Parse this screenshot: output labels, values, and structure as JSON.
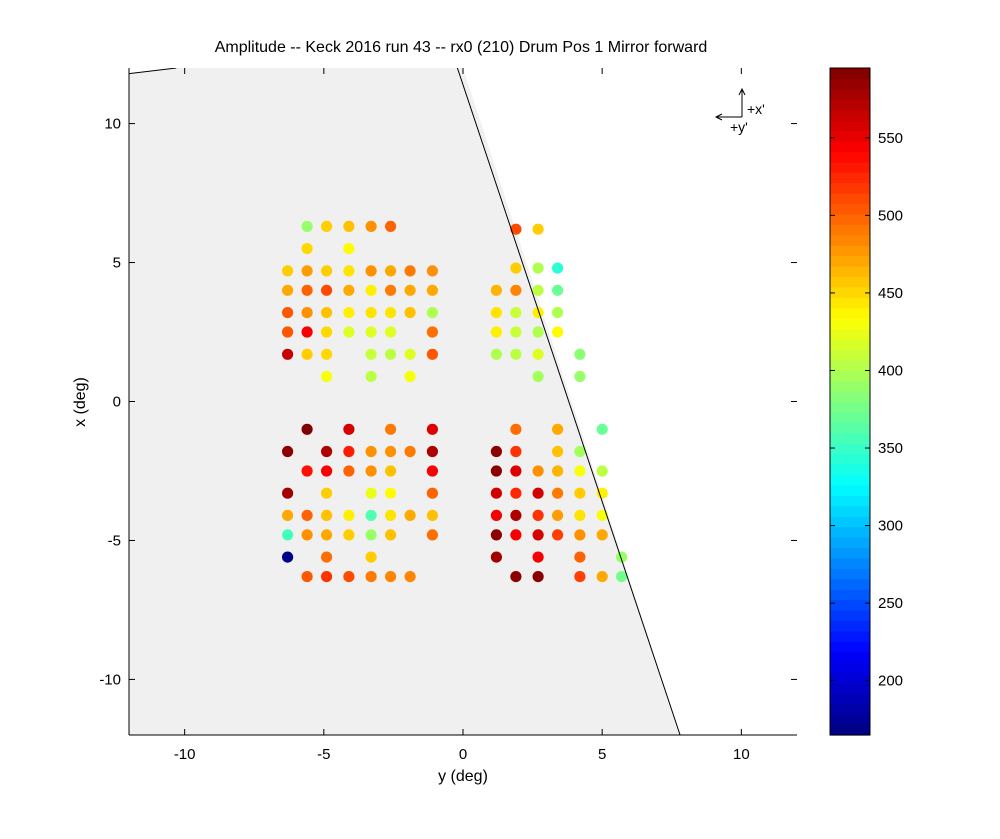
{
  "chart_data": {
    "type": "scatter",
    "title": "Amplitude -- Keck 2016 run 43 -- rx0 (210) Drum Pos 1 Mirror forward",
    "xlabel": "y (deg)",
    "ylabel": "x (deg)",
    "xlim": [
      -12,
      12
    ],
    "ylim": [
      -12,
      12
    ],
    "xticks": [
      -10,
      -5,
      0,
      5,
      10
    ],
    "yticks": [
      -10,
      -5,
      0,
      5,
      10
    ],
    "xtick_labels": [
      "-10",
      "-5",
      "0",
      "5",
      "10"
    ],
    "ytick_labels": [
      "-10",
      "-5",
      "0",
      "5",
      "10"
    ],
    "grid": false,
    "shaded_region": {
      "color": "#f0f0f0",
      "polygon": [
        [
          -12,
          11.8
        ],
        [
          -10.3,
          12
        ],
        [
          0,
          12
        ],
        [
          7.8,
          -12
        ],
        [
          -12,
          -12
        ]
      ]
    },
    "boundary_line": [
      [
        [
          -12,
          11.8
        ],
        [
          -10.3,
          12
        ]
      ],
      [
        [
          -0.2,
          12
        ],
        [
          7.8,
          -12
        ],
        [
          12,
          -12
        ]
      ]
    ],
    "colorbar": {
      "colormap": "jet",
      "min": 165,
      "max": 595,
      "ticks": [
        200,
        250,
        300,
        350,
        400,
        450,
        500,
        550
      ],
      "tick_labels": [
        "200",
        "250",
        "300",
        "350",
        "400",
        "450",
        "500",
        "550"
      ]
    },
    "orientation_label": {
      "x_axis": "+x'",
      "y_axis": "+y'"
    },
    "points": [
      {
        "y": -5.6,
        "x": 6.3,
        "amp": 390
      },
      {
        "y": -4.9,
        "x": 6.3,
        "amp": 455
      },
      {
        "y": -4.1,
        "x": 6.3,
        "amp": 460
      },
      {
        "y": -3.3,
        "x": 6.3,
        "amp": 480
      },
      {
        "y": -2.6,
        "x": 6.3,
        "amp": 500
      },
      {
        "y": -5.6,
        "x": 5.5,
        "amp": 450
      },
      {
        "y": -4.1,
        "x": 5.5,
        "amp": 435
      },
      {
        "y": -6.3,
        "x": 4.7,
        "amp": 455
      },
      {
        "y": -5.6,
        "x": 4.7,
        "amp": 475
      },
      {
        "y": -4.9,
        "x": 4.7,
        "amp": 455
      },
      {
        "y": -4.1,
        "x": 4.7,
        "amp": 445
      },
      {
        "y": -3.3,
        "x": 4.7,
        "amp": 480
      },
      {
        "y": -2.6,
        "x": 4.7,
        "amp": 470
      },
      {
        "y": -1.9,
        "x": 4.7,
        "amp": 490
      },
      {
        "y": -1.1,
        "x": 4.7,
        "amp": 480
      },
      {
        "y": -6.3,
        "x": 4.0,
        "amp": 470
      },
      {
        "y": -5.6,
        "x": 4.0,
        "amp": 500
      },
      {
        "y": -4.9,
        "x": 4.0,
        "amp": 510
      },
      {
        "y": -4.1,
        "x": 4.0,
        "amp": 470
      },
      {
        "y": -3.3,
        "x": 4.0,
        "amp": 440
      },
      {
        "y": -2.6,
        "x": 4.0,
        "amp": 490
      },
      {
        "y": -1.9,
        "x": 4.0,
        "amp": 470
      },
      {
        "y": -1.1,
        "x": 4.0,
        "amp": 470
      },
      {
        "y": -6.3,
        "x": 3.2,
        "amp": 505
      },
      {
        "y": -5.6,
        "x": 3.2,
        "amp": 480
      },
      {
        "y": -4.9,
        "x": 3.2,
        "amp": 460
      },
      {
        "y": -4.1,
        "x": 3.2,
        "amp": 440
      },
      {
        "y": -3.3,
        "x": 3.2,
        "amp": 445
      },
      {
        "y": -2.6,
        "x": 3.2,
        "amp": 445
      },
      {
        "y": -1.9,
        "x": 3.2,
        "amp": 460
      },
      {
        "y": -1.1,
        "x": 3.2,
        "amp": 400
      },
      {
        "y": -6.3,
        "x": 2.5,
        "amp": 505
      },
      {
        "y": -5.6,
        "x": 2.5,
        "amp": 545
      },
      {
        "y": -4.9,
        "x": 2.5,
        "amp": 450
      },
      {
        "y": -4.1,
        "x": 2.5,
        "amp": 420
      },
      {
        "y": -3.3,
        "x": 2.5,
        "amp": 420
      },
      {
        "y": -2.6,
        "x": 2.5,
        "amp": 420
      },
      {
        "y": -1.1,
        "x": 2.5,
        "amp": 495
      },
      {
        "y": -6.3,
        "x": 1.7,
        "amp": 565
      },
      {
        "y": -5.6,
        "x": 1.7,
        "amp": 455
      },
      {
        "y": -4.9,
        "x": 1.7,
        "amp": 450
      },
      {
        "y": -3.3,
        "x": 1.7,
        "amp": 410
      },
      {
        "y": -2.6,
        "x": 1.7,
        "amp": 405
      },
      {
        "y": -1.9,
        "x": 1.7,
        "amp": 420
      },
      {
        "y": -1.1,
        "x": 1.7,
        "amp": 505
      },
      {
        "y": -4.9,
        "x": 0.9,
        "amp": 430
      },
      {
        "y": -3.3,
        "x": 0.9,
        "amp": 405
      },
      {
        "y": -1.9,
        "x": 0.9,
        "amp": 430
      },
      {
        "y": 1.9,
        "x": 6.2,
        "amp": 510
      },
      {
        "y": 2.7,
        "x": 6.2,
        "amp": 455
      },
      {
        "y": 1.9,
        "x": 4.8,
        "amp": 455
      },
      {
        "y": 2.7,
        "x": 4.8,
        "amp": 400
      },
      {
        "y": 3.4,
        "x": 4.8,
        "amp": 345
      },
      {
        "y": 1.2,
        "x": 4.0,
        "amp": 465
      },
      {
        "y": 1.9,
        "x": 4.0,
        "amp": 485
      },
      {
        "y": 2.7,
        "x": 4.0,
        "amp": 405
      },
      {
        "y": 3.4,
        "x": 4.0,
        "amp": 370
      },
      {
        "y": 1.2,
        "x": 3.2,
        "amp": 445
      },
      {
        "y": 1.9,
        "x": 3.2,
        "amp": 410
      },
      {
        "y": 2.7,
        "x": 3.2,
        "amp": 440
      },
      {
        "y": 3.4,
        "x": 3.2,
        "amp": 400
      },
      {
        "y": 1.2,
        "x": 2.5,
        "amp": 440
      },
      {
        "y": 1.9,
        "x": 2.5,
        "amp": 410
      },
      {
        "y": 2.7,
        "x": 2.5,
        "amp": 400
      },
      {
        "y": 3.4,
        "x": 2.5,
        "amp": 435
      },
      {
        "y": 1.2,
        "x": 1.7,
        "amp": 400
      },
      {
        "y": 1.9,
        "x": 1.7,
        "amp": 405
      },
      {
        "y": 2.7,
        "x": 1.7,
        "amp": 420
      },
      {
        "y": 4.2,
        "x": 1.7,
        "amp": 385
      },
      {
        "y": 2.7,
        "x": 0.9,
        "amp": 395
      },
      {
        "y": 4.2,
        "x": 0.9,
        "amp": 390
      },
      {
        "y": -5.6,
        "x": -1.0,
        "amp": 595
      },
      {
        "y": -4.1,
        "x": -1.0,
        "amp": 560
      },
      {
        "y": -2.6,
        "x": -1.0,
        "amp": 490
      },
      {
        "y": -1.1,
        "x": -1.0,
        "amp": 555
      },
      {
        "y": -6.3,
        "x": -1.8,
        "amp": 590
      },
      {
        "y": -4.9,
        "x": -1.8,
        "amp": 575
      },
      {
        "y": -4.1,
        "x": -1.8,
        "amp": 530
      },
      {
        "y": -3.3,
        "x": -1.8,
        "amp": 480
      },
      {
        "y": -2.6,
        "x": -1.8,
        "amp": 480
      },
      {
        "y": -1.9,
        "x": -1.8,
        "amp": 490
      },
      {
        "y": -1.1,
        "x": -1.8,
        "amp": 575
      },
      {
        "y": -5.6,
        "x": -2.5,
        "amp": 535
      },
      {
        "y": -4.9,
        "x": -2.5,
        "amp": 545
      },
      {
        "y": -4.1,
        "x": -2.5,
        "amp": 500
      },
      {
        "y": -3.3,
        "x": -2.5,
        "amp": 480
      },
      {
        "y": -2.6,
        "x": -2.5,
        "amp": 460
      },
      {
        "y": -1.1,
        "x": -2.5,
        "amp": 545
      },
      {
        "y": -6.3,
        "x": -3.3,
        "amp": 580
      },
      {
        "y": -4.9,
        "x": -3.3,
        "amp": 455
      },
      {
        "y": -3.3,
        "x": -3.3,
        "amp": 425
      },
      {
        "y": -2.6,
        "x": -3.3,
        "amp": 435
      },
      {
        "y": -1.1,
        "x": -3.3,
        "amp": 500
      },
      {
        "y": -6.3,
        "x": -4.1,
        "amp": 470
      },
      {
        "y": -5.6,
        "x": -4.1,
        "amp": 500
      },
      {
        "y": -4.9,
        "x": -4.1,
        "amp": 460
      },
      {
        "y": -4.1,
        "x": -4.1,
        "amp": 440
      },
      {
        "y": -3.3,
        "x": -4.1,
        "amp": 360
      },
      {
        "y": -2.6,
        "x": -4.1,
        "amp": 445
      },
      {
        "y": -1.9,
        "x": -4.1,
        "amp": 470
      },
      {
        "y": -1.1,
        "x": -4.1,
        "amp": 460
      },
      {
        "y": -6.3,
        "x": -4.8,
        "amp": 355
      },
      {
        "y": -5.6,
        "x": -4.8,
        "amp": 480
      },
      {
        "y": -4.9,
        "x": -4.8,
        "amp": 470
      },
      {
        "y": -4.1,
        "x": -4.8,
        "amp": 455
      },
      {
        "y": -3.3,
        "x": -4.8,
        "amp": 390
      },
      {
        "y": -2.6,
        "x": -4.8,
        "amp": 460
      },
      {
        "y": -1.1,
        "x": -4.8,
        "amp": 495
      },
      {
        "y": -6.3,
        "x": -5.6,
        "amp": 170
      },
      {
        "y": -4.9,
        "x": -5.6,
        "amp": 495
      },
      {
        "y": -3.3,
        "x": -5.6,
        "amp": 455
      },
      {
        "y": -5.6,
        "x": -6.3,
        "amp": 505
      },
      {
        "y": -4.9,
        "x": -6.3,
        "amp": 520
      },
      {
        "y": -4.1,
        "x": -6.3,
        "amp": 510
      },
      {
        "y": -3.3,
        "x": -6.3,
        "amp": 490
      },
      {
        "y": -2.6,
        "x": -6.3,
        "amp": 485
      },
      {
        "y": -1.9,
        "x": -6.3,
        "amp": 485
      },
      {
        "y": 1.9,
        "x": -1.0,
        "amp": 495
      },
      {
        "y": 3.4,
        "x": -1.0,
        "amp": 470
      },
      {
        "y": 5.0,
        "x": -1.0,
        "amp": 370
      },
      {
        "y": 1.2,
        "x": -1.8,
        "amp": 590
      },
      {
        "y": 1.9,
        "x": -1.8,
        "amp": 520
      },
      {
        "y": 3.4,
        "x": -1.8,
        "amp": 460
      },
      {
        "y": 4.2,
        "x": -1.8,
        "amp": 395
      },
      {
        "y": 1.2,
        "x": -2.5,
        "amp": 590
      },
      {
        "y": 1.9,
        "x": -2.5,
        "amp": 555
      },
      {
        "y": 2.7,
        "x": -2.5,
        "amp": 480
      },
      {
        "y": 3.4,
        "x": -2.5,
        "amp": 465
      },
      {
        "y": 4.2,
        "x": -2.5,
        "amp": 430
      },
      {
        "y": 5.0,
        "x": -2.5,
        "amp": 405
      },
      {
        "y": 1.2,
        "x": -3.3,
        "amp": 560
      },
      {
        "y": 1.9,
        "x": -3.3,
        "amp": 525
      },
      {
        "y": 2.7,
        "x": -3.3,
        "amp": 560
      },
      {
        "y": 3.4,
        "x": -3.3,
        "amp": 490
      },
      {
        "y": 4.2,
        "x": -3.3,
        "amp": 455
      },
      {
        "y": 5.0,
        "x": -3.3,
        "amp": 440
      },
      {
        "y": 1.2,
        "x": -4.1,
        "amp": 545
      },
      {
        "y": 1.9,
        "x": -4.1,
        "amp": 575
      },
      {
        "y": 2.7,
        "x": -4.1,
        "amp": 520
      },
      {
        "y": 3.4,
        "x": -4.1,
        "amp": 475
      },
      {
        "y": 4.2,
        "x": -4.1,
        "amp": 445
      },
      {
        "y": 5.0,
        "x": -4.1,
        "amp": 430
      },
      {
        "y": 1.2,
        "x": -4.8,
        "amp": 590
      },
      {
        "y": 1.9,
        "x": -4.8,
        "amp": 545
      },
      {
        "y": 2.7,
        "x": -4.8,
        "amp": 560
      },
      {
        "y": 3.4,
        "x": -4.8,
        "amp": 515
      },
      {
        "y": 4.2,
        "x": -4.8,
        "amp": 480
      },
      {
        "y": 5.0,
        "x": -4.8,
        "amp": 470
      },
      {
        "y": 1.2,
        "x": -5.6,
        "amp": 580
      },
      {
        "y": 2.7,
        "x": -5.6,
        "amp": 545
      },
      {
        "y": 4.2,
        "x": -5.6,
        "amp": 500
      },
      {
        "y": 5.7,
        "x": -5.6,
        "amp": 390
      },
      {
        "y": 1.9,
        "x": -6.3,
        "amp": 590
      },
      {
        "y": 2.7,
        "x": -6.3,
        "amp": 590
      },
      {
        "y": 4.2,
        "x": -6.3,
        "amp": 515
      },
      {
        "y": 5.0,
        "x": -6.3,
        "amp": 470
      },
      {
        "y": 5.7,
        "x": -6.3,
        "amp": 375
      }
    ]
  }
}
